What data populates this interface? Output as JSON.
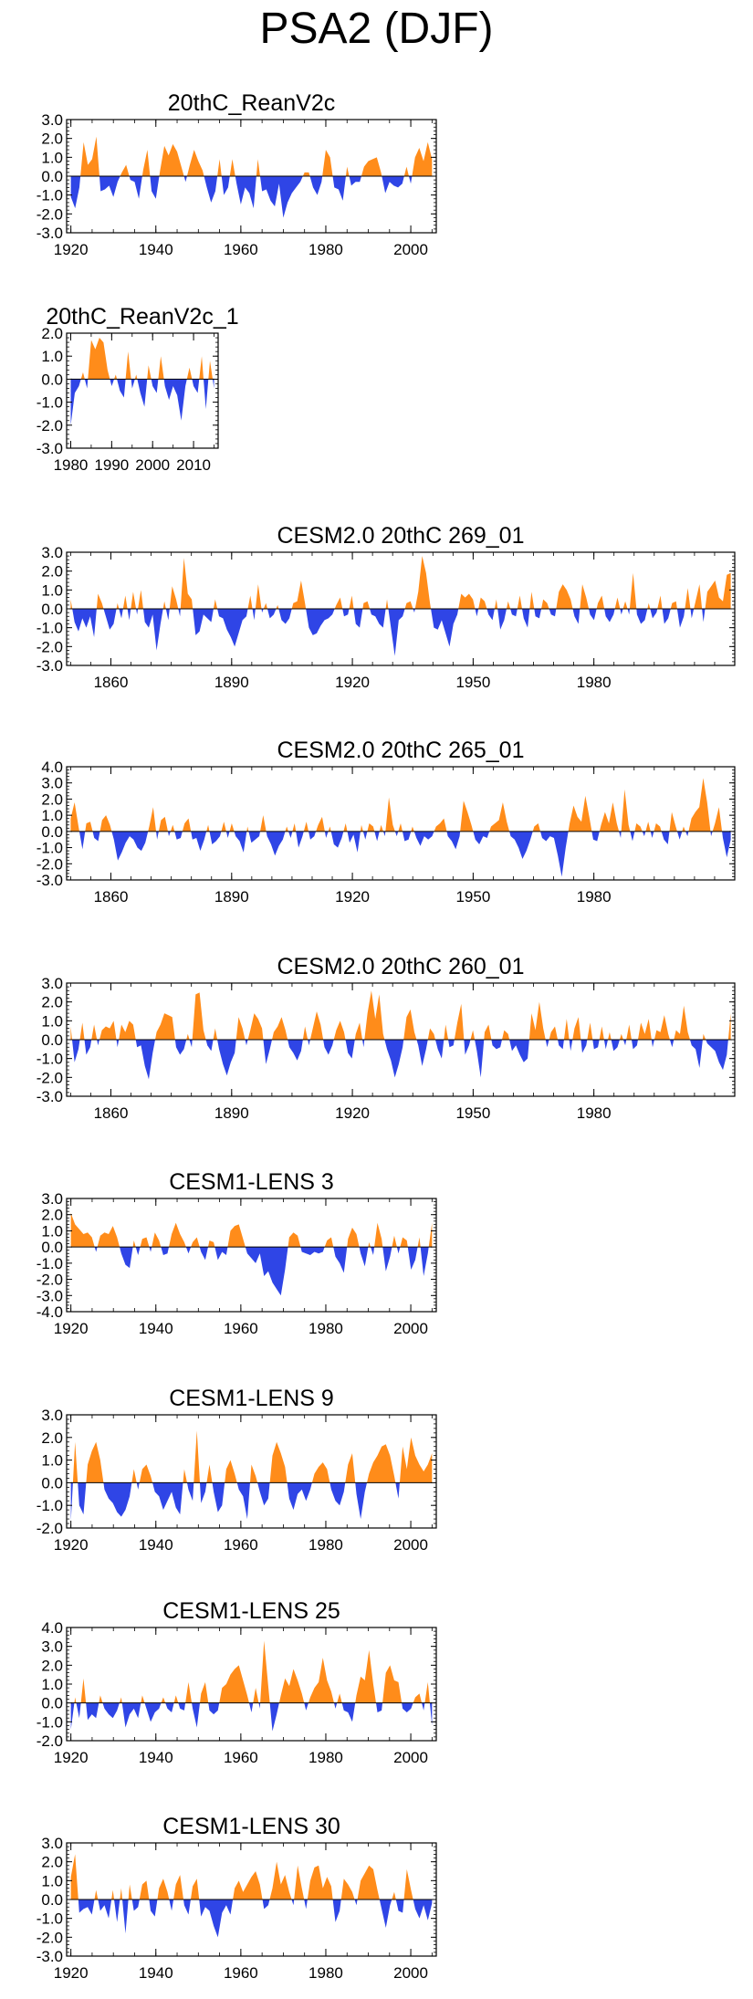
{
  "title": "PSA2 (DJF)",
  "colors": {
    "positive": "#ff8c1a",
    "negative": "#2f45e6",
    "axis": "#000000"
  },
  "chart_data": [
    {
      "type": "area",
      "title": "20thC_ReanV2c",
      "x_start": 1920,
      "x_end": 2005,
      "xlim": [
        1919,
        2006
      ],
      "ylim": [
        -3,
        3
      ],
      "yticks": [
        3,
        2,
        1,
        0,
        -1,
        -2,
        -3
      ],
      "ytick_labels": [
        "3.0",
        "2.0",
        "1.0",
        "0.0",
        "-1.0",
        "-2.0",
        "-3.0"
      ],
      "xticks": [
        1920,
        1940,
        1960,
        1980,
        2000
      ],
      "xtick_labels": [
        "1920",
        "1940",
        "1960",
        "1980",
        "2000"
      ],
      "values": [
        -1.1,
        -1.7,
        -0.6,
        1.8,
        0.6,
        0.9,
        2.1,
        -0.8,
        -0.7,
        -0.5,
        -1.1,
        -0.3,
        0.2,
        0.6,
        -0.2,
        -0.3,
        -1.2,
        0.3,
        1.4,
        -0.8,
        -1.2,
        0.3,
        1.6,
        1.1,
        1.7,
        1.3,
        0.5,
        -0.3,
        0.6,
        1.4,
        0.8,
        0.3,
        -0.6,
        -1.4,
        -0.8,
        0.9,
        -1.0,
        -0.6,
        0.9,
        -0.4,
        -1.5,
        -0.6,
        -0.9,
        -1.7,
        0.9,
        -0.8,
        -0.7,
        -1.3,
        -1.6,
        -0.4,
        -2.2,
        -1.4,
        -0.9,
        -0.6,
        -0.3,
        0.2,
        0.2,
        -0.6,
        -1.0,
        -0.3,
        1.4,
        1.0,
        -0.6,
        -0.7,
        -1.3,
        0.5,
        -0.5,
        -0.3,
        -0.3,
        0.5,
        0.8,
        0.9,
        1.0,
        0.2,
        -0.9,
        -0.3,
        -0.5,
        -0.6,
        -0.4,
        0.5,
        -0.4,
        1.0,
        1.5,
        0.8,
        1.8,
        0.9
      ]
    },
    {
      "type": "area",
      "title": "20thC_ReanV2c_1",
      "x_start": 1980,
      "x_end": 2015,
      "xlim": [
        1979,
        2016
      ],
      "ylim": [
        -3,
        2
      ],
      "yticks": [
        2,
        1,
        0,
        -1,
        -2,
        -3
      ],
      "ytick_labels": [
        "2.0",
        "1.0",
        "0.0",
        "-1.0",
        "-2.0",
        "-3.0"
      ],
      "xticks": [
        1980,
        1990,
        2000,
        2010
      ],
      "xtick_labels": [
        "1980",
        "1990",
        "2000",
        "2010"
      ],
      "values": [
        -2.0,
        -0.6,
        -0.3,
        0.3,
        -0.4,
        1.7,
        1.3,
        1.8,
        1.6,
        0.4,
        -0.3,
        0.2,
        -0.5,
        -0.8,
        1.2,
        -0.4,
        0.2,
        -0.6,
        -1.2,
        0.6,
        -0.3,
        -0.6,
        1.0,
        -0.3,
        -0.9,
        -0.3,
        -0.7,
        -1.8,
        -0.3,
        0.5,
        -0.3,
        -0.6,
        1.0,
        -1.3,
        0.8,
        -0.4
      ]
    },
    {
      "type": "area",
      "title": "CESM2.0 20thC 269_01",
      "x_start": 1850,
      "x_end": 2014,
      "xlim": [
        1849,
        2015
      ],
      "ylim": [
        -3,
        3
      ],
      "yticks": [
        3,
        2,
        1,
        0,
        -1,
        -2,
        -3
      ],
      "ytick_labels": [
        "3.0",
        "2.0",
        "1.0",
        "0.0",
        "-1.0",
        "-2.0",
        "-3.0"
      ],
      "xticks": [
        1860,
        1890,
        1920,
        1950,
        1980
      ],
      "xtick_labels": [
        "1860",
        "1890",
        "1920",
        "1950",
        "1980"
      ],
      "values": [
        0.5,
        -0.7,
        -1.2,
        -0.5,
        -1.0,
        -0.4,
        -1.5,
        0.8,
        0.3,
        -0.4,
        -1.1,
        -0.8,
        0.3,
        -0.5,
        0.7,
        -0.6,
        0.9,
        -0.3,
        1.0,
        -0.7,
        -1.0,
        -0.3,
        -2.2,
        -0.8,
        0.4,
        -0.6,
        1.2,
        0.5,
        -0.4,
        2.7,
        0.8,
        0.5,
        -1.4,
        -1.2,
        -0.3,
        -0.5,
        -0.7,
        0.5,
        -0.4,
        -0.5,
        -1.1,
        -1.5,
        -2.0,
        -1.3,
        -0.6,
        -0.4,
        0.7,
        -0.6,
        1.3,
        -0.2,
        0.3,
        -0.5,
        -0.3,
        0.2,
        -0.6,
        -0.8,
        -0.5,
        0.3,
        0.4,
        1.5,
        0.3,
        -1.0,
        -1.4,
        -1.3,
        -0.9,
        -0.6,
        -0.5,
        -0.3,
        0.2,
        0.6,
        -0.4,
        -0.3,
        0.7,
        -0.8,
        -1.0,
        0.3,
        0.4,
        -0.3,
        -0.4,
        -0.8,
        -1.0,
        0.5,
        -1.0,
        -2.5,
        -0.6,
        -0.4,
        0.3,
        0.4,
        -0.2,
        0.9,
        2.8,
        1.9,
        0.3,
        -1.0,
        -1.1,
        -0.6,
        -1.3,
        -2.0,
        -0.8,
        -0.3,
        0.8,
        0.6,
        0.8,
        0.5,
        -0.4,
        0.6,
        0.4,
        -0.3,
        -0.6,
        0.5,
        -1.1,
        -0.6,
        0.4,
        -0.3,
        -0.4,
        0.7,
        -0.5,
        -1.0,
        0.9,
        -0.4,
        -0.5,
        0.5,
        0.3,
        -0.3,
        -0.4,
        0.9,
        1.3,
        1.0,
        0.5,
        -0.4,
        -0.8,
        1.3,
        0.6,
        -0.3,
        -0.6,
        0.3,
        0.7,
        -0.4,
        -0.7,
        -0.3,
        0.6,
        -0.3,
        0.4,
        -0.3,
        1.9,
        -0.3,
        -0.8,
        -0.6,
        0.3,
        -0.5,
        -0.2,
        0.7,
        -0.8,
        -0.5,
        0.3,
        0.4,
        -1.0,
        -0.4,
        1.1,
        -0.5,
        0.4,
        1.3,
        -0.7,
        0.9,
        1.2,
        1.5,
        0.6,
        0.4,
        1.8,
        1.9
      ]
    },
    {
      "type": "area",
      "title": "CESM2.0 20thC 265_01",
      "x_start": 1850,
      "x_end": 2014,
      "xlim": [
        1849,
        2015
      ],
      "ylim": [
        -3,
        4
      ],
      "yticks": [
        4,
        3,
        2,
        1,
        0,
        -1,
        -2,
        -3
      ],
      "ytick_labels": [
        "4.0",
        "3.0",
        "2.0",
        "1.0",
        "0.0",
        "-1.0",
        "-2.0",
        "-3.0"
      ],
      "xticks": [
        1860,
        1890,
        1920,
        1950,
        1980
      ],
      "xtick_labels": [
        "1860",
        "1890",
        "1920",
        "1950",
        "1980"
      ],
      "values": [
        0.8,
        1.8,
        0.3,
        -1.1,
        0.5,
        0.6,
        -0.4,
        -0.6,
        0.7,
        1.0,
        0.4,
        -0.5,
        -1.8,
        -1.3,
        -0.7,
        -0.3,
        -0.5,
        -1.0,
        -1.2,
        -0.7,
        0.3,
        1.5,
        -0.5,
        0.7,
        0.9,
        -0.3,
        0.4,
        -0.5,
        -0.4,
        0.5,
        0.8,
        -0.5,
        -0.4,
        -1.2,
        -0.5,
        0.4,
        -0.8,
        -0.6,
        -0.3,
        0.6,
        -0.4,
        0.5,
        -0.3,
        -0.6,
        -1.3,
        0.3,
        -0.7,
        -0.5,
        -0.3,
        1.0,
        -0.3,
        -0.8,
        -1.5,
        -0.9,
        -0.5,
        0.3,
        -0.4,
        0.5,
        -1.0,
        -0.3,
        0.6,
        -0.5,
        -0.3,
        0.4,
        0.9,
        -0.4,
        0.3,
        -0.8,
        -1.0,
        -0.4,
        0.5,
        -0.7,
        -0.2,
        -1.3,
        0.4,
        -0.5,
        0.5,
        0.3,
        -0.6,
        0.4,
        -0.3,
        2.1,
        0.4,
        -0.3,
        0.5,
        -0.6,
        -0.5,
        0.3,
        -0.4,
        -0.9,
        -0.3,
        -0.5,
        -0.3,
        0.3,
        0.5,
        0.8,
        -0.3,
        -0.6,
        -1.1,
        -0.3,
        1.9,
        1.2,
        0.4,
        -0.5,
        -0.8,
        -0.3,
        -0.4,
        0.3,
        0.5,
        0.7,
        1.8,
        0.6,
        -0.3,
        -0.5,
        -1.0,
        -1.7,
        -1.2,
        -0.5,
        0.3,
        0.5,
        -0.4,
        -0.6,
        -0.3,
        -0.4,
        -1.5,
        -2.8,
        -1.0,
        0.5,
        1.6,
        0.9,
        0.6,
        2.2,
        0.9,
        -0.5,
        -0.6,
        0.4,
        1.2,
        0.5,
        1.8,
        0.5,
        -0.4,
        2.6,
        0.4,
        -0.6,
        0.5,
        0.3,
        -0.3,
        0.6,
        -0.4,
        0.5,
        0.3,
        -0.5,
        -0.8,
        1.2,
        0.3,
        -0.5,
        0.3,
        -0.3,
        0.8,
        1.2,
        1.5,
        3.3,
        1.8,
        -0.3,
        0.5,
        1.5,
        -0.4,
        -1.6,
        -0.5
      ]
    },
    {
      "type": "area",
      "title": "CESM2.0 20thC 260_01",
      "x_start": 1850,
      "x_end": 2014,
      "xlim": [
        1849,
        2015
      ],
      "ylim": [
        -3,
        3
      ],
      "yticks": [
        3,
        2,
        1,
        0,
        -1,
        -2,
        -3
      ],
      "ytick_labels": [
        "3.0",
        "2.0",
        "1.0",
        "0.0",
        "-1.0",
        "-2.0",
        "-3.0"
      ],
      "xticks": [
        1860,
        1890,
        1920,
        1950,
        1980
      ],
      "xtick_labels": [
        "1860",
        "1890",
        "1920",
        "1950",
        "1980"
      ],
      "values": [
        0.7,
        -1.2,
        -0.5,
        0.9,
        -0.8,
        -0.4,
        0.8,
        -0.3,
        0.5,
        0.7,
        0.6,
        1.0,
        -0.4,
        0.8,
        0.4,
        1.0,
        0.8,
        -0.4,
        -0.3,
        -1.4,
        -2.1,
        -0.7,
        0.4,
        0.8,
        1.4,
        1.3,
        1.2,
        -0.4,
        -0.8,
        -0.5,
        0.3,
        -0.4,
        2.4,
        2.5,
        0.5,
        -0.3,
        -0.6,
        0.6,
        -0.5,
        -1.3,
        -1.9,
        -1.2,
        -0.7,
        1.2,
        0.6,
        -0.3,
        0.5,
        1.4,
        1.1,
        0.6,
        -1.3,
        -0.5,
        0.4,
        0.7,
        1.2,
        0.5,
        -0.4,
        -0.7,
        -1.1,
        -0.6,
        0.7,
        -0.3,
        0.6,
        1.5,
        0.8,
        -0.4,
        -0.8,
        -0.3,
        0.5,
        1.0,
        0.4,
        -0.7,
        -1.0,
        0.3,
        0.9,
        -0.4,
        1.4,
        2.6,
        1.1,
        2.4,
        0.3,
        -0.5,
        -1.1,
        -2.0,
        -1.3,
        -0.4,
        1.2,
        1.6,
        0.4,
        -0.3,
        -1.4,
        -0.5,
        0.6,
        0.3,
        -0.5,
        -1.0,
        0.8,
        -0.4,
        -0.3,
        0.9,
        1.9,
        -0.8,
        -0.3,
        0.5,
        -0.6,
        -2.0,
        0.4,
        0.8,
        -0.3,
        -0.5,
        -0.4,
        0.5,
        0.3,
        -0.6,
        -0.3,
        -0.8,
        -1.2,
        -1.0,
        1.4,
        0.5,
        2.0,
        0.6,
        -0.4,
        0.4,
        0.7,
        -0.3,
        -0.5,
        1.1,
        -0.6,
        0.6,
        1.2,
        -0.7,
        -0.3,
        0.9,
        -0.5,
        -0.4,
        0.7,
        -0.5,
        0.4,
        -0.6,
        -0.4,
        0.3,
        -0.3,
        0.8,
        -0.5,
        -0.3,
        0.9,
        0.3,
        1.1,
        -0.4,
        0.5,
        0.4,
        1.3,
        0.3,
        -0.4,
        0.5,
        0.3,
        1.8,
        0.4,
        -0.3,
        -0.5,
        -1.5,
        0.3,
        -0.2,
        -0.4,
        -0.6,
        -1.2,
        -1.6,
        -0.8,
        1.4
      ]
    },
    {
      "type": "area",
      "title": "CESM1-LENS 3",
      "x_start": 1920,
      "x_end": 2005,
      "xlim": [
        1919,
        2006
      ],
      "ylim": [
        -4,
        3
      ],
      "yticks": [
        3,
        2,
        1,
        0,
        -1,
        -2,
        -3,
        -4
      ],
      "ytick_labels": [
        "3.0",
        "2.0",
        "1.0",
        "0.0",
        "-1.0",
        "-2.0",
        "-3.0",
        "-4.0"
      ],
      "xticks": [
        1920,
        1940,
        1960,
        1980,
        2000
      ],
      "xtick_labels": [
        "1920",
        "1940",
        "1960",
        "1980",
        "2000"
      ],
      "values": [
        2.1,
        1.4,
        1.1,
        0.8,
        0.9,
        0.6,
        -0.3,
        0.7,
        0.9,
        0.8,
        1.3,
        0.6,
        -0.4,
        -1.1,
        -1.3,
        0.4,
        -0.5,
        0.5,
        0.6,
        -0.3,
        0.9,
        0.4,
        -0.5,
        -0.4,
        0.8,
        1.5,
        0.8,
        0.3,
        -0.4,
        0.3,
        0.6,
        -0.3,
        -0.8,
        0.4,
        0.3,
        -0.8,
        -0.3,
        -0.5,
        1.0,
        1.3,
        1.4,
        0.5,
        -0.4,
        -0.7,
        -1.0,
        -0.4,
        -1.8,
        -1.5,
        -2.2,
        -2.6,
        -3.0,
        -1.4,
        0.6,
        0.9,
        0.7,
        -0.3,
        -0.4,
        -0.5,
        -0.3,
        -0.4,
        -0.3,
        0.4,
        0.6,
        -0.6,
        -1.0,
        -1.6,
        0.5,
        1.2,
        0.8,
        -0.4,
        -1.2,
        0.3,
        -0.5,
        1.5,
        0.5,
        -1.5,
        -0.6,
        0.7,
        -0.4,
        0.6,
        0.4,
        -1.4,
        -0.8,
        0.6,
        -1.8,
        -0.4,
        1.5
      ]
    },
    {
      "type": "area",
      "title": "CESM1-LENS 9",
      "x_start": 1920,
      "x_end": 2005,
      "xlim": [
        1919,
        2006
      ],
      "ylim": [
        -2,
        3
      ],
      "yticks": [
        3,
        2,
        1,
        0,
        -1,
        -2
      ],
      "ytick_labels": [
        "3.0",
        "2.0",
        "1.0",
        "0.0",
        "-1.0",
        "-2.0"
      ],
      "xticks": [
        1920,
        1940,
        1960,
        1980,
        2000
      ],
      "xtick_labels": [
        "1920",
        "1940",
        "1960",
        "1980",
        "2000"
      ],
      "values": [
        -1.7,
        1.8,
        -1.0,
        -1.4,
        0.8,
        1.4,
        1.8,
        1.0,
        -0.3,
        -0.7,
        -0.9,
        -1.3,
        -1.5,
        -1.2,
        -0.6,
        0.6,
        -0.3,
        0.6,
        0.8,
        0.3,
        -0.4,
        -0.6,
        -1.2,
        -0.8,
        -0.4,
        -1.1,
        -1.4,
        0.6,
        -0.3,
        -0.8,
        2.3,
        -0.9,
        -0.4,
        0.8,
        -0.4,
        -1.3,
        -1.0,
        0.6,
        1.0,
        0.4,
        -0.3,
        -0.6,
        -1.6,
        0.8,
        0.3,
        -0.4,
        -1.0,
        -0.7,
        1.2,
        1.8,
        1.3,
        0.7,
        -0.7,
        -1.2,
        -0.5,
        -0.3,
        -0.8,
        -0.3,
        0.4,
        0.7,
        0.9,
        0.6,
        -0.3,
        -0.8,
        -1.0,
        -0.4,
        0.8,
        1.3,
        -0.5,
        -1.6,
        -0.4,
        0.4,
        0.9,
        1.2,
        1.6,
        1.7,
        1.2,
        0.3,
        -0.7,
        1.6,
        0.6,
        2.0,
        1.2,
        0.8,
        0.5,
        0.8,
        1.3
      ]
    },
    {
      "type": "area",
      "title": "CESM1-LENS 25",
      "x_start": 1920,
      "x_end": 2005,
      "xlim": [
        1919,
        2006
      ],
      "ylim": [
        -2,
        4
      ],
      "yticks": [
        4,
        3,
        2,
        1,
        0,
        -1,
        -2
      ],
      "ytick_labels": [
        "4.0",
        "3.0",
        "2.0",
        "1.0",
        "0.0",
        "-1.0",
        "-2.0"
      ],
      "xticks": [
        1920,
        1940,
        1960,
        1980,
        2000
      ],
      "xtick_labels": [
        "1920",
        "1940",
        "1960",
        "1980",
        "2000"
      ],
      "values": [
        -1.4,
        0.3,
        -0.8,
        1.3,
        -0.9,
        -0.6,
        -0.8,
        0.4,
        -0.3,
        -0.6,
        -0.8,
        -0.4,
        0.3,
        -1.3,
        -0.6,
        -0.3,
        -0.8,
        0.4,
        -0.3,
        -1.0,
        -0.5,
        -0.3,
        0.3,
        -0.3,
        -0.5,
        0.4,
        -0.3,
        -0.4,
        1.1,
        -0.3,
        -1.3,
        0.5,
        1.1,
        -0.4,
        -0.6,
        -0.4,
        0.8,
        1.0,
        1.5,
        1.8,
        2.0,
        1.2,
        0.4,
        -0.5,
        0.8,
        -0.3,
        3.3,
        0.9,
        -1.5,
        -0.6,
        0.4,
        1.3,
        0.9,
        1.8,
        1.2,
        0.5,
        -0.4,
        0.3,
        0.8,
        1.1,
        2.4,
        1.2,
        0.6,
        -0.3,
        0.5,
        -0.4,
        -0.5,
        -1.0,
        0.4,
        1.4,
        1.2,
        2.8,
        1.0,
        -0.5,
        -0.4,
        1.6,
        2.0,
        1.2,
        1.1,
        -0.3,
        -0.5,
        -0.3,
        0.3,
        0.5,
        -0.4,
        1.1,
        -1.2
      ]
    },
    {
      "type": "area",
      "title": "CESM1-LENS 30",
      "x_start": 1920,
      "x_end": 2005,
      "xlim": [
        1919,
        2006
      ],
      "ylim": [
        -3,
        3
      ],
      "yticks": [
        3,
        2,
        1,
        0,
        -1,
        -2,
        -3
      ],
      "ytick_labels": [
        "3.0",
        "2.0",
        "1.0",
        "0.0",
        "-1.0",
        "-2.0",
        "-3.0"
      ],
      "xticks": [
        1920,
        1940,
        1960,
        1980,
        2000
      ],
      "xtick_labels": [
        "1920",
        "1940",
        "1960",
        "1980",
        "2000"
      ],
      "values": [
        1.2,
        2.4,
        -0.7,
        -0.5,
        -0.4,
        -0.8,
        0.5,
        -0.6,
        -0.3,
        -1.0,
        0.5,
        -1.2,
        0.6,
        -1.8,
        0.8,
        -0.6,
        -0.4,
        0.8,
        1.0,
        -0.6,
        -0.9,
        0.6,
        1.1,
        0.4,
        -0.6,
        0.8,
        1.3,
        -0.3,
        -0.8,
        0.7,
        1.1,
        -0.9,
        -0.4,
        -0.6,
        -1.4,
        -2.0,
        -0.7,
        -0.3,
        -0.8,
        0.6,
        1.0,
        0.4,
        0.8,
        1.2,
        1.5,
        0.8,
        -0.5,
        -0.3,
        0.6,
        2.0,
        0.8,
        1.3,
        0.4,
        -0.3,
        1.8,
        0.6,
        -0.5,
        1.0,
        1.7,
        1.8,
        0.6,
        1.2,
        0.7,
        -1.2,
        -0.6,
        1.1,
        0.8,
        0.4,
        -0.3,
        1.0,
        1.4,
        1.8,
        1.6,
        0.5,
        -0.5,
        -1.5,
        -0.3,
        0.4,
        -0.6,
        -0.7,
        1.6,
        0.5,
        -0.5,
        -1.0,
        -0.3,
        -1.1,
        -0.2
      ]
    }
  ]
}
